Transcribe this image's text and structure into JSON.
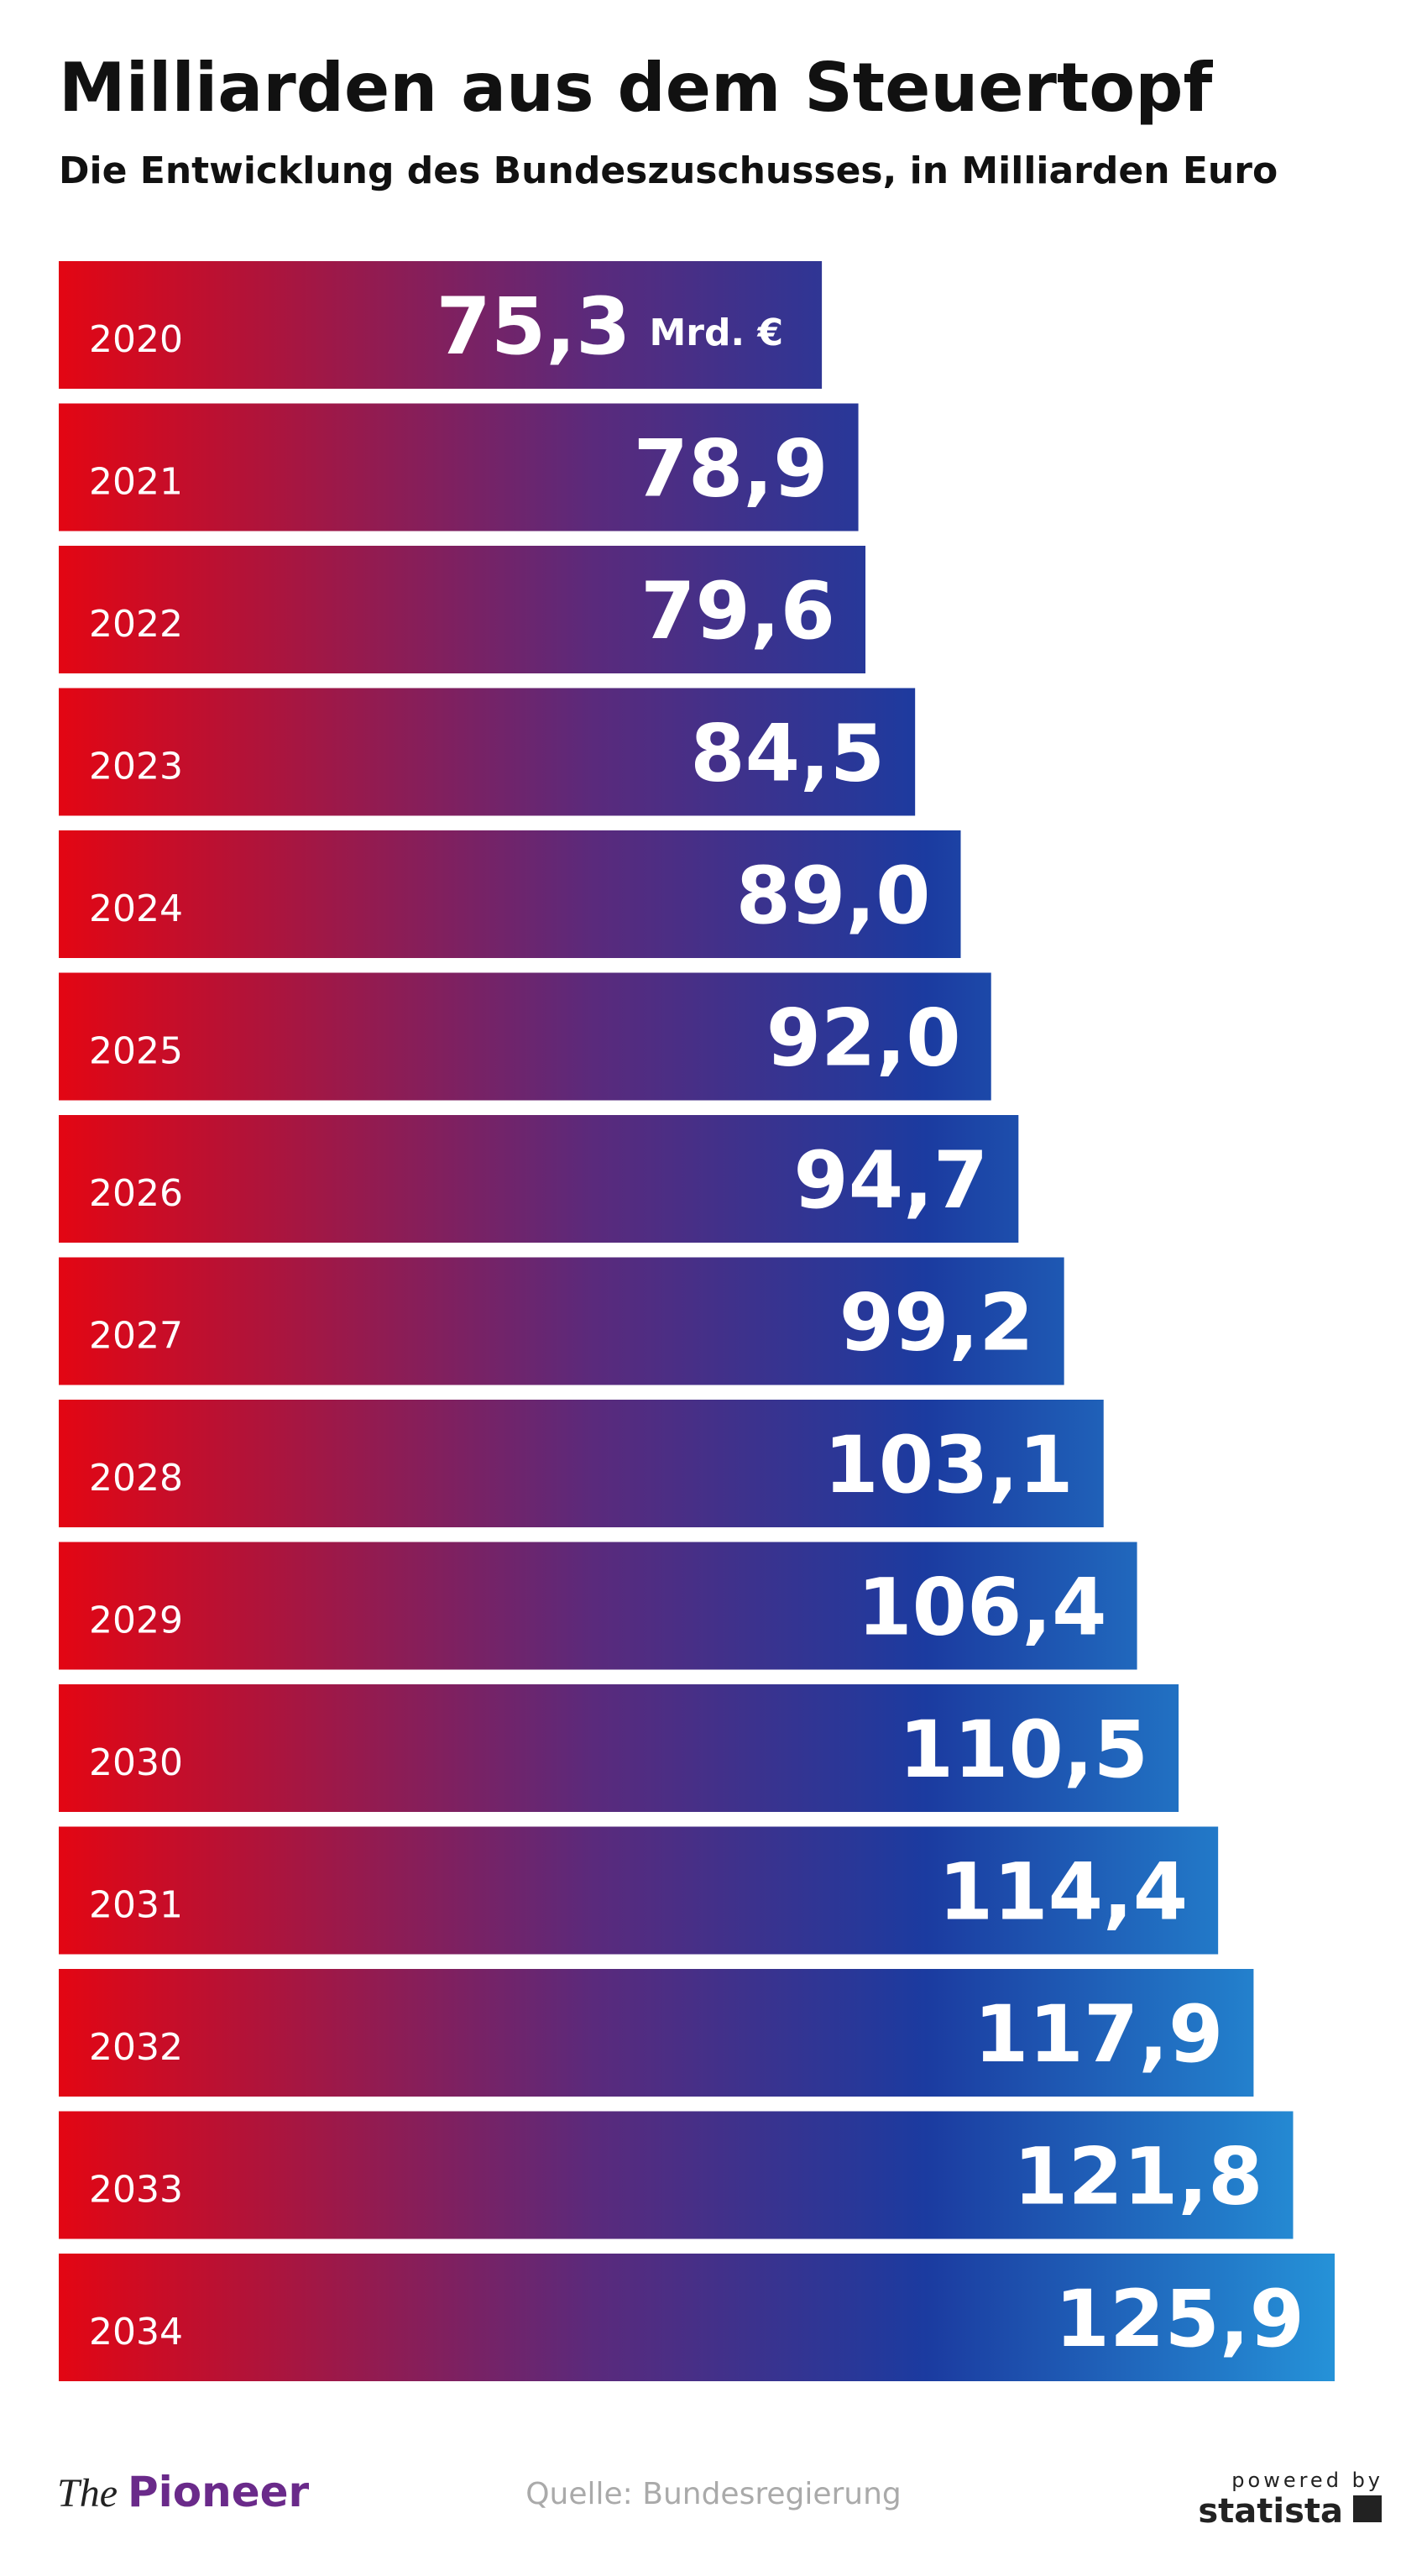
{
  "chart_data": {
    "type": "bar",
    "orientation": "horizontal",
    "title": "Milliarden aus dem Steuertopf",
    "subtitle": "Die Entwicklung des Bundeszuschusses, in Milliarden Euro",
    "categories": [
      "2020",
      "2021",
      "2022",
      "2023",
      "2024",
      "2025",
      "2026",
      "2027",
      "2028",
      "2029",
      "2030",
      "2031",
      "2032",
      "2033",
      "2034"
    ],
    "values": [
      75.3,
      78.9,
      79.6,
      84.5,
      89.0,
      92.0,
      94.7,
      99.2,
      103.1,
      106.4,
      110.5,
      114.4,
      117.9,
      121.8,
      125.9
    ],
    "value_labels": [
      "75,3",
      "78,9",
      "79,6",
      "84,5",
      "89,0",
      "92,0",
      "94,7",
      "99,2",
      "103,1",
      "106,4",
      "110,5",
      "114,4",
      "117,9",
      "121,8",
      "125,9"
    ],
    "unit_label": "Mrd. €",
    "colors": [
      "#e30613",
      "#5a2a7c",
      "#1b3ba0",
      "#2592d8"
    ],
    "source": "Quelle: Bundesregierung",
    "brand": {
      "the": "The",
      "pioneer": "Pioneer"
    },
    "powered_by": "powered by",
    "statista": "statista"
  }
}
